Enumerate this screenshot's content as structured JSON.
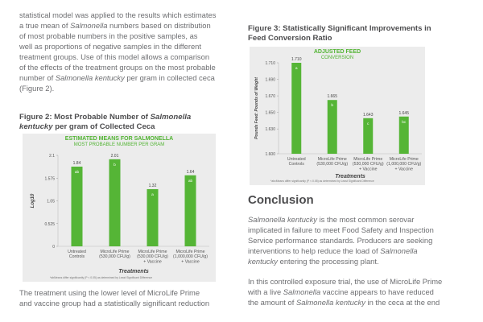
{
  "left_column": {
    "intro_lines": [
      "statistical model was applied to the results which estimates",
      "a true mean of Salmonella numbers based on distribution",
      "of most probable numbers in the positive samples, as",
      "well as proportions of negative samples in the different",
      "treatment groups. Use of this model allows a comparison",
      "of the effects of the treatment groups on the most probable",
      "number of Salmonella kentucky per gram in collected ceca",
      "(Figure 2)."
    ],
    "figure2_title_line1": "Figure 2: Most Probable Number of Salmonella",
    "figure2_title_line2": "kentucky per gram of Collected Ceca",
    "bottom_lines": [
      "The treatment using the lower level of MicroLife Prime",
      "and vaccine group had a statistically significant reduction"
    ]
  },
  "right_column": {
    "figure3_title_line1": "Figure 3: Statistically Significant Improvements in",
    "figure3_title_line2": "Feed Conversion Ratio",
    "conclusion_heading": "Conclusion",
    "conclusion_p1": [
      "Salmonella kentucky is the most common serovar",
      "implicated in failure to meet Food Safety and Inspection",
      "Service performance standards. Producers are seeking",
      "interventions to help reduce the load of Salmonella",
      "kentucky entering the processing plant."
    ],
    "conclusion_p2": [
      "In this controlled exposure trial, the use of MicroLife Prime",
      "with a live Salmonella vaccine appears to have reduced",
      "the amount of Salmonella kentucky in the ceca at the end"
    ]
  },
  "chart_data": [
    {
      "type": "bar",
      "title": "ESTIMATED MEANS FOR SALMONELLA",
      "subtitle": "MOST PROBABLE NUMBER PER GRAM",
      "ylabel": "Log10",
      "xlabel": "Treatments",
      "ylim": [
        0,
        2.1
      ],
      "yticks": [
        "0",
        "0.525",
        "1.05",
        "1.575",
        "2.1"
      ],
      "categories": [
        [
          "Untreated",
          "Controls"
        ],
        [
          "MicroLife Prime",
          "(530,000 CFU/g)"
        ],
        [
          "MicroLife Prime",
          "(530,000 CFU/g)",
          "+ Vaccine"
        ],
        [
          "MicroLife Prime",
          "(1,000,000 CFU/g)",
          "+ Vaccine"
        ]
      ],
      "values": [
        1.84,
        2.01,
        1.32,
        1.64
      ],
      "value_labels": [
        "1.84",
        "2.01",
        "1.32",
        "1.64"
      ],
      "letters": [
        "ab",
        "b",
        "a",
        "ab"
      ],
      "footnote": "*abMeans differ significantly (P < 0.05) as determined by Least Significant Difference",
      "bar_color": "#55b536"
    },
    {
      "type": "bar",
      "title": "ADJUSTED FEED",
      "subtitle": "CONVERSION",
      "ylabel": "Pounds Feed: Pounds of Weight",
      "xlabel": "Treatments",
      "ylim": [
        1.6,
        1.71
      ],
      "yticks": [
        "1.600",
        "1.630",
        "1.650",
        "1.670",
        "1.690",
        "1.710"
      ],
      "categories": [
        [
          "Untreated",
          "Controls"
        ],
        [
          "MicroLife Prime",
          "(530,000 CFU/g)"
        ],
        [
          "MicroLife Prime",
          "(530,000 CFU/g)",
          "+ Vaccine"
        ],
        [
          "MicroLife Prime",
          "(1,000,000 CFU/g)",
          "+ Vaccine"
        ]
      ],
      "values": [
        1.71,
        1.665,
        1.643,
        1.645
      ],
      "value_labels": [
        "1.710",
        "1.665",
        "1.643",
        "1.645"
      ],
      "letters": [
        "a",
        "b",
        "c",
        "bc"
      ],
      "footnote": "*abcMeans differ significantly (P < 0.05) as determined by Least Significant Difference",
      "bar_color": "#55b536"
    }
  ]
}
